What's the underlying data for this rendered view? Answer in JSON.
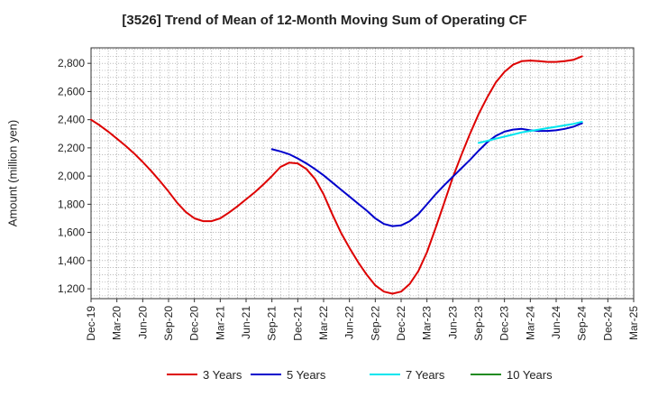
{
  "chart_data": {
    "type": "line",
    "title": "[3526]  Trend of Mean of 12-Month Moving Sum of Operating CF",
    "xlabel": "",
    "ylabel": "Amount (million yen)",
    "ylim": [
      1130,
      2910
    ],
    "yticks": [
      1200,
      1400,
      1600,
      1800,
      2000,
      2200,
      2400,
      2600,
      2800
    ],
    "ytick_labels": [
      "1,200",
      "1,400",
      "1,600",
      "1,800",
      "2,000",
      "2,200",
      "2,400",
      "2,600",
      "2,800"
    ],
    "x_categories": [
      "Dec-19",
      "Mar-20",
      "Jun-20",
      "Sep-20",
      "Dec-20",
      "Mar-21",
      "Jun-21",
      "Sep-21",
      "Dec-21",
      "Mar-22",
      "Jun-22",
      "Sep-22",
      "Dec-22",
      "Mar-23",
      "Jun-23",
      "Sep-23",
      "Dec-23",
      "Mar-24",
      "Jun-24",
      "Sep-24",
      "Dec-24",
      "Mar-25"
    ],
    "x_unit": "month index from Dec-19",
    "xlim": [
      0,
      63
    ],
    "grid": true,
    "legend_position": "bottom",
    "series": [
      {
        "name": "3 Years",
        "color": "#dd0000",
        "x": [
          0,
          1,
          2,
          3,
          4,
          5,
          6,
          7,
          8,
          9,
          10,
          11,
          12,
          13,
          14,
          15,
          16,
          17,
          18,
          19,
          20,
          21,
          22,
          23,
          24,
          25,
          26,
          27,
          28,
          29,
          30,
          31,
          32,
          33,
          34,
          35,
          36,
          37,
          38,
          39,
          40,
          41,
          42,
          43,
          44,
          45,
          46,
          47,
          48,
          49,
          50,
          51,
          52,
          53,
          54,
          55,
          56,
          57
        ],
        "values": [
          2400,
          2360,
          2315,
          2265,
          2215,
          2160,
          2100,
          2035,
          1965,
          1890,
          1810,
          1745,
          1700,
          1680,
          1680,
          1700,
          1740,
          1785,
          1835,
          1885,
          1940,
          2000,
          2065,
          2095,
          2090,
          2050,
          1980,
          1870,
          1730,
          1600,
          1490,
          1390,
          1300,
          1225,
          1180,
          1165,
          1180,
          1235,
          1325,
          1460,
          1630,
          1810,
          1990,
          2150,
          2300,
          2440,
          2560,
          2665,
          2740,
          2790,
          2815,
          2820,
          2815,
          2810,
          2810,
          2815,
          2825,
          2850
        ]
      },
      {
        "name": "5 Years",
        "color": "#0000cc",
        "x": [
          21,
          22,
          23,
          24,
          25,
          26,
          27,
          28,
          29,
          30,
          31,
          32,
          33,
          34,
          35,
          36,
          37,
          38,
          39,
          40,
          41,
          42,
          43,
          44,
          45,
          46,
          47,
          48,
          49,
          50,
          51,
          52,
          53,
          54,
          55,
          56,
          57
        ],
        "values": [
          2190,
          2175,
          2155,
          2125,
          2090,
          2050,
          2005,
          1955,
          1905,
          1855,
          1805,
          1755,
          1700,
          1660,
          1645,
          1650,
          1680,
          1730,
          1800,
          1870,
          1935,
          1995,
          2055,
          2115,
          2180,
          2240,
          2285,
          2315,
          2330,
          2335,
          2325,
          2320,
          2320,
          2325,
          2335,
          2350,
          2375
        ]
      },
      {
        "name": "7 Years",
        "color": "#00e5ee",
        "x": [
          45,
          46,
          47,
          48,
          49,
          50,
          51,
          52,
          53,
          54,
          55,
          56,
          57
        ],
        "values": [
          2235,
          2250,
          2265,
          2280,
          2295,
          2310,
          2320,
          2330,
          2340,
          2350,
          2360,
          2370,
          2385
        ]
      },
      {
        "name": "10 Years",
        "color": "#228b22",
        "x": [],
        "values": []
      }
    ]
  }
}
